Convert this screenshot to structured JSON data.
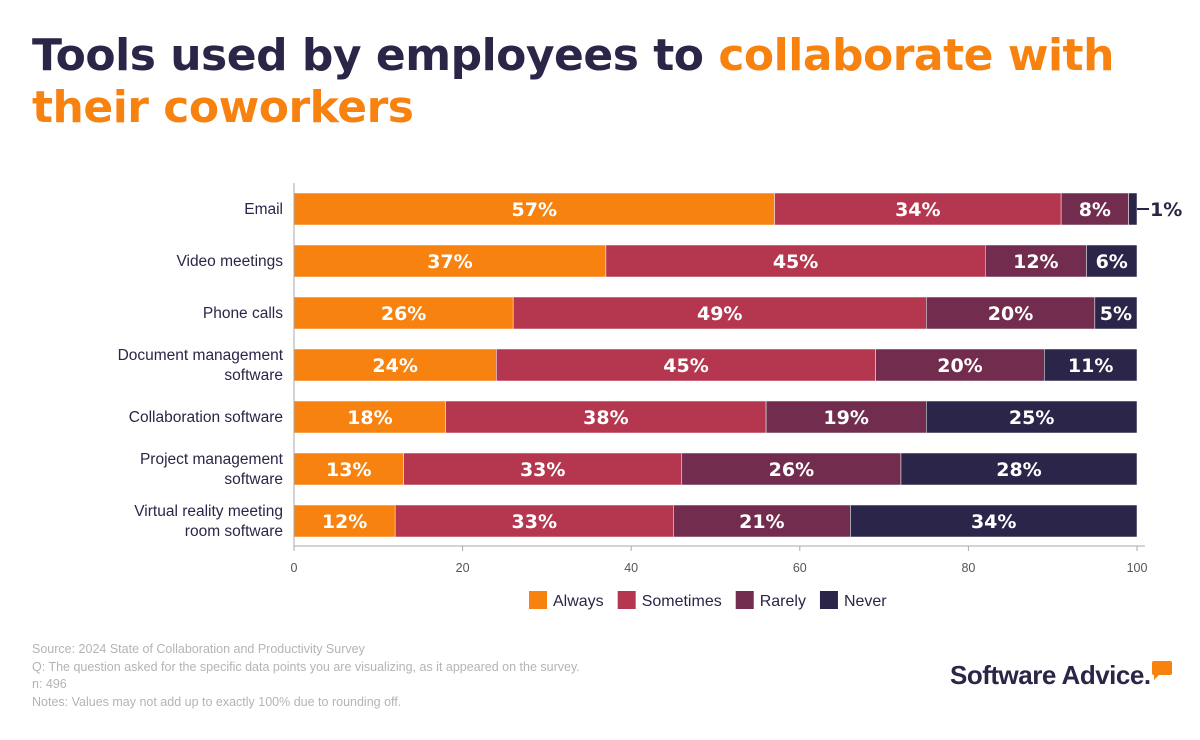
{
  "title": {
    "part1": "Tools used by employees to ",
    "part2": "collaborate with their coworkers"
  },
  "colors": {
    "Always": "#f7820f",
    "Sometimes": "#b5374f",
    "Rarely": "#722d4e",
    "Never": "#2b2549",
    "text": "#2b2547",
    "accent": "#f7820f"
  },
  "chart_data": {
    "type": "bar",
    "orientation": "horizontal",
    "stacked": true,
    "categories": [
      [
        "Email"
      ],
      [
        "Video meetings"
      ],
      [
        "Phone calls"
      ],
      [
        "Document management",
        "software"
      ],
      [
        "Collaboration software"
      ],
      [
        "Project management",
        "software"
      ],
      [
        "Virtual reality meeting",
        "room software"
      ]
    ],
    "series": [
      {
        "name": "Always",
        "values": [
          57,
          37,
          26,
          24,
          18,
          13,
          12
        ]
      },
      {
        "name": "Sometimes",
        "values": [
          34,
          45,
          49,
          45,
          38,
          33,
          33
        ]
      },
      {
        "name": "Rarely",
        "values": [
          8,
          12,
          20,
          20,
          19,
          26,
          21
        ]
      },
      {
        "name": "Never",
        "values": [
          1,
          6,
          5,
          11,
          25,
          28,
          34
        ]
      }
    ],
    "value_suffix": "%",
    "xlim": [
      0,
      100
    ],
    "xticks": [
      "0",
      "20",
      "40",
      "60",
      "80",
      "100"
    ],
    "grid": false,
    "legend_position": "bottom"
  },
  "footer": {
    "source": "Source: 2024 State of Collaboration and Productivity Survey",
    "question": "Q: The question asked for the specific data points you are visualizing, as it appeared on the survey.",
    "n": "n: 496",
    "notes": "Notes: Values may not add up to exactly 100% due to rounding off."
  },
  "logo": "Software Advice."
}
